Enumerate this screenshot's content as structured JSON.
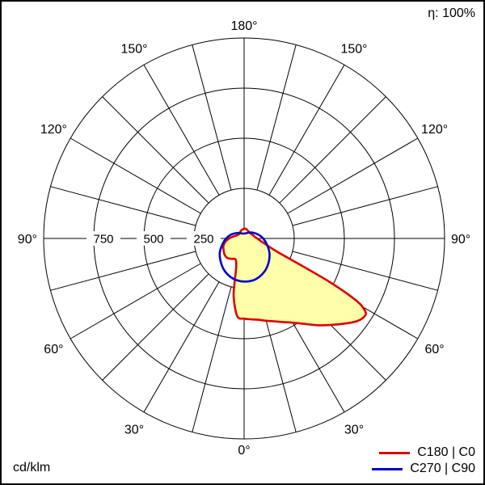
{
  "header": {
    "efficiency": "η: 100%"
  },
  "footer": {
    "unit": "cd/klm"
  },
  "legend": [
    {
      "label": "C180 | C0",
      "color": "#dd0000"
    },
    {
      "label": "C270 | C90",
      "color": "#0000cc"
    }
  ],
  "chart_data": {
    "type": "polar",
    "subtype": "photometric_intensity_distribution",
    "unit": "cd/klm",
    "efficiency": "100%",
    "max_value": 1000,
    "rings": [
      250,
      500,
      750,
      1000
    ],
    "ring_tick_values": [
      750,
      500,
      250
    ],
    "ring_tick_labels": [
      "750",
      "500",
      "250"
    ],
    "angle_ticks_deg": [
      0,
      30,
      60,
      90,
      120,
      150,
      180
    ],
    "angle_tick_labels": [
      "0°",
      "30°",
      "60°",
      "90°",
      "120°",
      "150°",
      "180°"
    ],
    "spoke_step_deg": 15,
    "series": [
      {
        "name": "C180 | C0",
        "color": "#dd0000",
        "fill_color": "#ffffaa",
        "points_left_deg_value": [
          [
            180,
            48
          ],
          [
            170,
            46
          ],
          [
            160,
            42
          ],
          [
            150,
            38
          ],
          [
            140,
            34
          ],
          [
            130,
            33
          ],
          [
            120,
            36
          ],
          [
            110,
            42
          ],
          [
            100,
            55
          ],
          [
            90,
            75
          ],
          [
            80,
            95
          ],
          [
            70,
            110
          ],
          [
            60,
            118
          ],
          [
            50,
            127
          ],
          [
            40,
            128
          ],
          [
            30,
            118
          ],
          [
            25,
            112
          ],
          [
            20,
            118
          ],
          [
            15,
            155
          ],
          [
            12,
            230
          ],
          [
            10,
            300
          ],
          [
            5,
            390
          ],
          [
            0,
            400
          ]
        ],
        "points_right_deg_value": [
          [
            0,
            400
          ],
          [
            5,
            405
          ],
          [
            10,
            412
          ],
          [
            15,
            425
          ],
          [
            20,
            440
          ],
          [
            25,
            460
          ],
          [
            30,
            485
          ],
          [
            35,
            520
          ],
          [
            40,
            565
          ],
          [
            45,
            610
          ],
          [
            50,
            660
          ],
          [
            54,
            700
          ],
          [
            57,
            715
          ],
          [
            59,
            705
          ],
          [
            61,
            640
          ],
          [
            63,
            480
          ],
          [
            65,
            300
          ],
          [
            68,
            180
          ],
          [
            72,
            130
          ],
          [
            76,
            105
          ],
          [
            80,
            88
          ],
          [
            85,
            75
          ],
          [
            90,
            65
          ],
          [
            95,
            58
          ],
          [
            100,
            53
          ],
          [
            110,
            47
          ],
          [
            120,
            43
          ],
          [
            130,
            40
          ],
          [
            140,
            39
          ],
          [
            150,
            42
          ],
          [
            160,
            45
          ],
          [
            170,
            49
          ],
          [
            180,
            48
          ]
        ]
      },
      {
        "name": "C270 | C90",
        "color": "#0000cc",
        "fill_color": "none",
        "points_left_deg_value": [
          [
            180,
            25
          ],
          [
            165,
            25
          ],
          [
            150,
            30
          ],
          [
            135,
            39
          ],
          [
            120,
            52
          ],
          [
            105,
            70
          ],
          [
            90,
            90
          ],
          [
            75,
            112
          ],
          [
            60,
            140
          ],
          [
            45,
            165
          ],
          [
            30,
            190
          ],
          [
            15,
            208
          ],
          [
            0,
            215
          ]
        ],
        "points_right_deg_value": [
          [
            0,
            215
          ],
          [
            15,
            212
          ],
          [
            30,
            196
          ],
          [
            45,
            172
          ],
          [
            60,
            146
          ],
          [
            75,
            118
          ],
          [
            90,
            95
          ],
          [
            105,
            74
          ],
          [
            120,
            56
          ],
          [
            135,
            42
          ],
          [
            150,
            32
          ],
          [
            165,
            26
          ],
          [
            180,
            25
          ]
        ]
      }
    ]
  }
}
